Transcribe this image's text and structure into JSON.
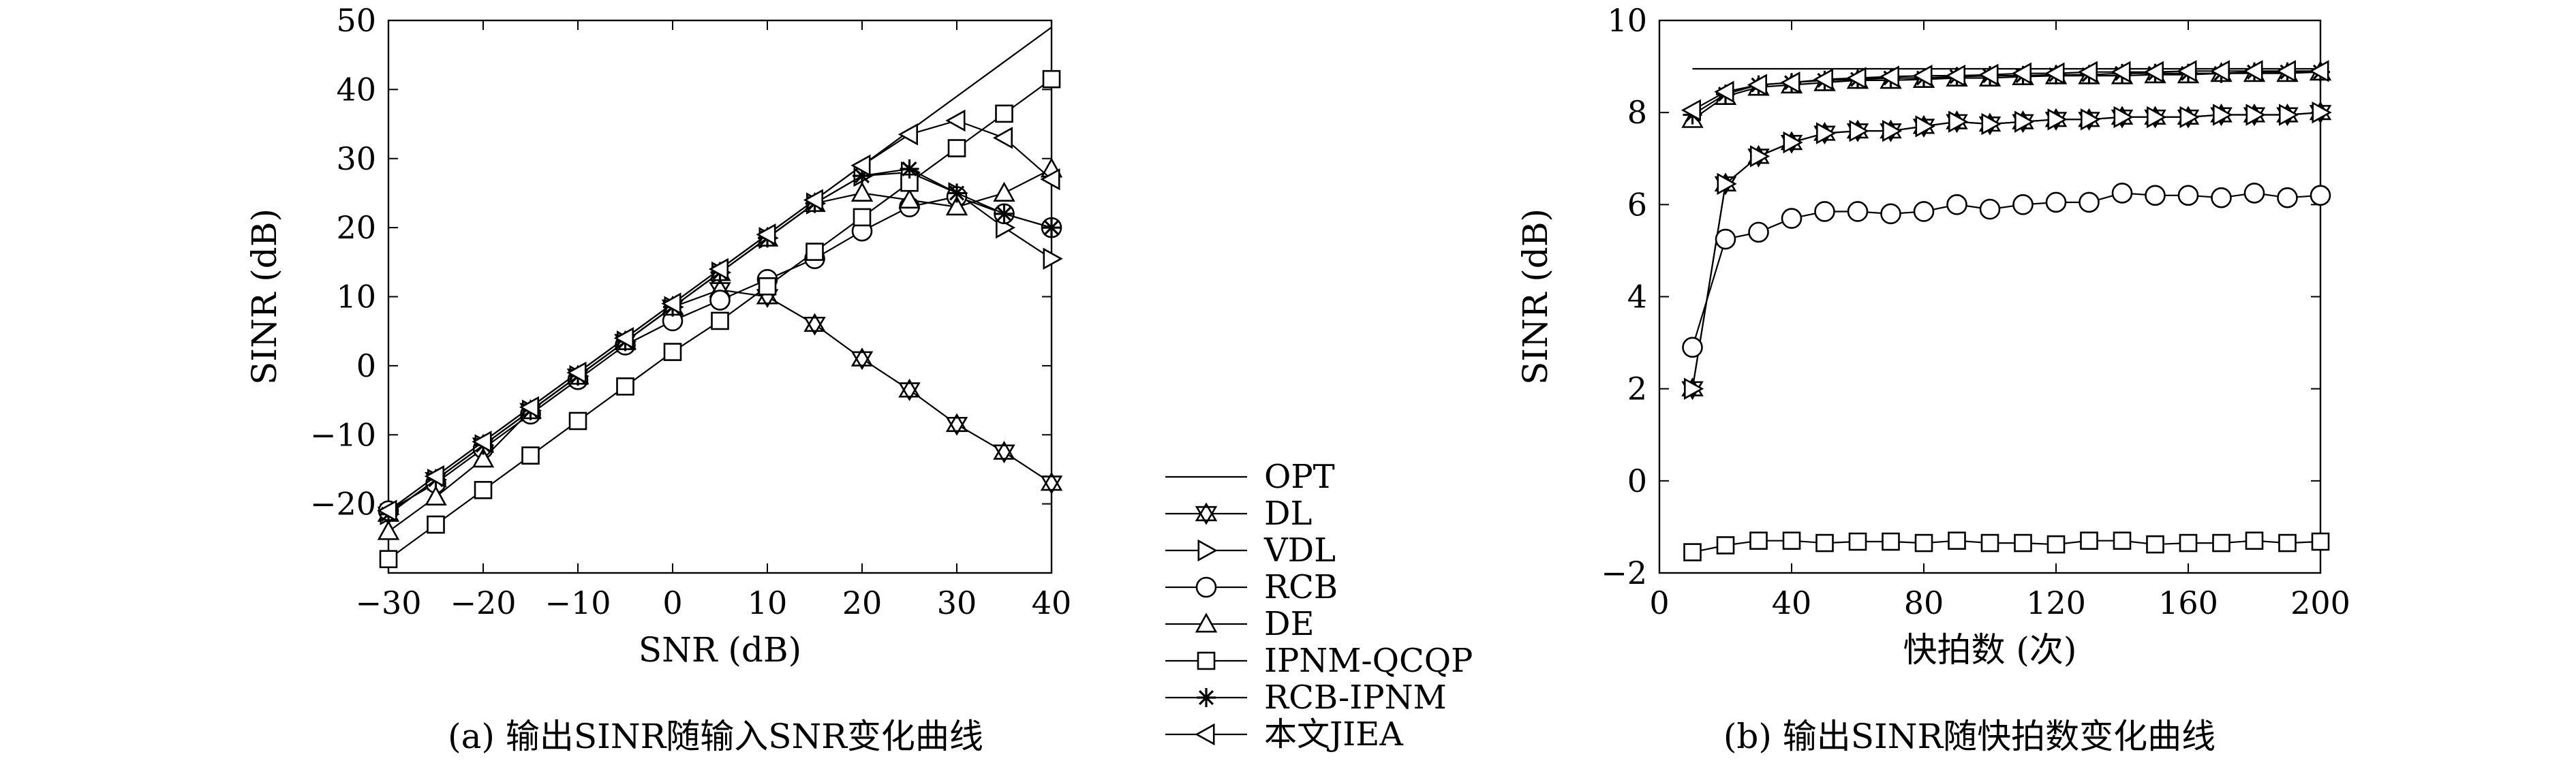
{
  "chart_data": [
    {
      "type": "line",
      "caption": "(a) 输出SINR随输入SNR变化曲线",
      "xlabel": "SNR (dB)",
      "ylabel": "SINR (dB)",
      "xlim": [
        -30,
        40
      ],
      "ylim": [
        -30,
        50
      ],
      "xticks": [
        -30,
        -20,
        -10,
        0,
        10,
        20,
        30,
        40
      ],
      "yticks": [
        -20,
        -10,
        0,
        10,
        20,
        30,
        40,
        50
      ],
      "xtick_labels": [
        "−30",
        "−20",
        "−10",
        "0",
        "10",
        "20",
        "30",
        "40"
      ],
      "ytick_labels": [
        "−20",
        "−10",
        "0",
        "10",
        "20",
        "30",
        "40",
        "50"
      ],
      "grid": false,
      "series": [
        {
          "name": "OPT",
          "marker": "none",
          "x": [
            -30,
            -25,
            -20,
            -15,
            -10,
            -5,
            0,
            5,
            10,
            15,
            20,
            25,
            30,
            35,
            40
          ],
          "y": [
            -21,
            -16,
            -11,
            -6,
            -1,
            4,
            9,
            14,
            19,
            24,
            29,
            34,
            39,
            44,
            49
          ]
        },
        {
          "name": "DL",
          "marker": "star-triangle-down",
          "x": [
            -30,
            -25,
            -20,
            -15,
            -10,
            -5,
            0,
            5,
            10,
            15,
            20,
            25,
            30,
            35,
            40
          ],
          "y": [
            -21.5,
            -16.5,
            -11.5,
            -6.5,
            -1.5,
            3.5,
            8.5,
            11,
            10,
            6,
            1,
            -3.5,
            -8.5,
            -12.5,
            -17
          ]
        },
        {
          "name": "VDL",
          "marker": "triangle-right",
          "x": [
            -30,
            -25,
            -20,
            -15,
            -10,
            -5,
            0,
            5,
            10,
            15,
            20,
            25,
            30,
            35,
            40
          ],
          "y": [
            -21.5,
            -16.5,
            -11.5,
            -6.5,
            -1.5,
            3.5,
            8.5,
            13.5,
            18.5,
            23.5,
            27.5,
            28,
            25,
            20,
            15.5
          ]
        },
        {
          "name": "RCB",
          "marker": "circle",
          "x": [
            -30,
            -25,
            -20,
            -15,
            -10,
            -5,
            0,
            5,
            10,
            15,
            20,
            25,
            30,
            35,
            40
          ],
          "y": [
            -21,
            -17,
            -12,
            -7,
            -2,
            3,
            6.5,
            9.5,
            12.5,
            15.5,
            19.5,
            23,
            24.5,
            22,
            20
          ]
        },
        {
          "name": "DE",
          "marker": "triangle-up",
          "x": [
            -30,
            -25,
            -20,
            -15,
            -10,
            -5,
            0,
            5,
            10,
            15,
            20,
            25,
            30,
            35,
            40
          ],
          "y": [
            -24,
            -19,
            -13.5,
            -6.5,
            -1.5,
            3.5,
            8.5,
            13.5,
            18.5,
            23.5,
            25,
            24,
            23,
            25,
            28.5
          ]
        },
        {
          "name": "IPNM-QCQP",
          "marker": "square",
          "x": [
            -30,
            -25,
            -20,
            -15,
            -10,
            -5,
            0,
            5,
            10,
            15,
            20,
            25,
            30,
            35,
            40
          ],
          "y": [
            -28,
            -23,
            -18,
            -13,
            -8,
            -3,
            2,
            6.5,
            11.5,
            16.5,
            21.5,
            26.5,
            31.5,
            36.5,
            41.5
          ]
        },
        {
          "name": "RCB-IPNM",
          "marker": "asterisk",
          "x": [
            -30,
            -25,
            -20,
            -15,
            -10,
            -5,
            0,
            5,
            10,
            15,
            20,
            25,
            30,
            35,
            40
          ],
          "y": [
            -21.5,
            -16.5,
            -11.5,
            -6.5,
            -1.5,
            3.5,
            8.5,
            13.5,
            18.5,
            23.5,
            27.5,
            28.5,
            25,
            22,
            20
          ]
        },
        {
          "name": "本文JIEA",
          "marker": "triangle-left",
          "x": [
            -30,
            -25,
            -20,
            -15,
            -10,
            -5,
            0,
            5,
            10,
            15,
            20,
            25,
            30,
            35,
            40
          ],
          "y": [
            -21,
            -16,
            -11,
            -6,
            -1,
            4,
            9,
            14,
            19,
            24,
            29,
            33.5,
            35.5,
            33,
            27
          ]
        }
      ]
    },
    {
      "type": "line",
      "caption": "(b) 输出SINR随快拍数变化曲线",
      "xlabel": "快拍数 (次)",
      "ylabel": "SINR (dB)",
      "xlim": [
        0,
        200
      ],
      "ylim": [
        -2,
        10
      ],
      "xticks": [
        0,
        40,
        80,
        120,
        160,
        200
      ],
      "yticks": [
        -2,
        0,
        2,
        4,
        6,
        8,
        10
      ],
      "xtick_labels": [
        "0",
        "40",
        "80",
        "120",
        "160",
        "200"
      ],
      "ytick_labels": [
        "−2",
        "0",
        "2",
        "4",
        "6",
        "8",
        "10"
      ],
      "grid": false,
      "series": [
        {
          "name": "OPT",
          "marker": "none",
          "x": [
            10,
            200
          ],
          "y": [
            8.95,
            8.95
          ]
        },
        {
          "name": "DL",
          "marker": "star-triangle-down",
          "x": [
            10,
            20,
            30,
            40,
            50,
            60,
            70,
            80,
            90,
            100,
            110,
            120,
            130,
            140,
            150,
            160,
            170,
            180,
            190,
            200
          ],
          "y": [
            2,
            6.45,
            7.05,
            7.35,
            7.55,
            7.6,
            7.6,
            7.7,
            7.8,
            7.75,
            7.8,
            7.85,
            7.85,
            7.9,
            7.9,
            7.9,
            7.95,
            7.95,
            7.95,
            8
          ]
        },
        {
          "name": "VDL",
          "marker": "triangle-right",
          "x": [
            10,
            20,
            30,
            40,
            50,
            60,
            70,
            80,
            90,
            100,
            110,
            120,
            130,
            140,
            150,
            160,
            170,
            180,
            190,
            200
          ],
          "y": [
            2,
            6.45,
            7.05,
            7.35,
            7.55,
            7.6,
            7.6,
            7.7,
            7.8,
            7.75,
            7.8,
            7.85,
            7.85,
            7.9,
            7.9,
            7.9,
            7.95,
            7.95,
            7.95,
            8
          ]
        },
        {
          "name": "RCB",
          "marker": "circle",
          "x": [
            10,
            20,
            30,
            40,
            50,
            60,
            70,
            80,
            90,
            100,
            110,
            120,
            130,
            140,
            150,
            160,
            170,
            180,
            190,
            200
          ],
          "y": [
            2.9,
            5.25,
            5.4,
            5.7,
            5.85,
            5.85,
            5.8,
            5.85,
            6.0,
            5.9,
            6.0,
            6.05,
            6.05,
            6.25,
            6.2,
            6.2,
            6.15,
            6.25,
            6.15,
            6.2
          ]
        },
        {
          "name": "DE",
          "marker": "triangle-up",
          "x": [
            10,
            20,
            30,
            40,
            50,
            60,
            70,
            80,
            90,
            100,
            110,
            120,
            130,
            140,
            150,
            160,
            170,
            180,
            190,
            200
          ],
          "y": [
            7.85,
            8.35,
            8.55,
            8.6,
            8.65,
            8.7,
            8.7,
            8.72,
            8.75,
            8.75,
            8.78,
            8.8,
            8.8,
            8.8,
            8.82,
            8.82,
            8.85,
            8.85,
            8.85,
            8.88
          ]
        },
        {
          "name": "IPNM-QCQP",
          "marker": "square",
          "x": [
            10,
            20,
            30,
            40,
            50,
            60,
            70,
            80,
            90,
            100,
            110,
            120,
            130,
            140,
            150,
            160,
            170,
            180,
            190,
            200
          ],
          "y": [
            -1.55,
            -1.4,
            -1.3,
            -1.3,
            -1.35,
            -1.32,
            -1.32,
            -1.35,
            -1.3,
            -1.35,
            -1.35,
            -1.38,
            -1.3,
            -1.3,
            -1.38,
            -1.35,
            -1.35,
            -1.3,
            -1.35,
            -1.32
          ]
        },
        {
          "name": "RCB-IPNM",
          "marker": "asterisk",
          "x": [
            10,
            20,
            30,
            40,
            50,
            60,
            70,
            80,
            90,
            100,
            110,
            120,
            130,
            140,
            150,
            160,
            170,
            180,
            190,
            200
          ],
          "y": [
            7.95,
            8.4,
            8.6,
            8.65,
            8.7,
            8.72,
            8.75,
            8.75,
            8.78,
            8.8,
            8.8,
            8.82,
            8.82,
            8.85,
            8.85,
            8.85,
            8.85,
            8.88,
            8.88,
            8.88
          ]
        },
        {
          "name": "本文JIEA",
          "marker": "triangle-left",
          "x": [
            10,
            20,
            30,
            40,
            50,
            60,
            70,
            80,
            90,
            100,
            110,
            120,
            130,
            140,
            150,
            160,
            170,
            180,
            190,
            200
          ],
          "y": [
            8.05,
            8.45,
            8.6,
            8.65,
            8.72,
            8.75,
            8.78,
            8.8,
            8.8,
            8.82,
            8.85,
            8.85,
            8.88,
            8.88,
            8.88,
            8.9,
            8.9,
            8.9,
            8.9,
            8.9
          ]
        }
      ]
    }
  ],
  "legend": {
    "entries": [
      {
        "label": "OPT",
        "marker": "none"
      },
      {
        "label": "DL",
        "marker": "star-triangle-down"
      },
      {
        "label": "VDL",
        "marker": "triangle-right"
      },
      {
        "label": "RCB",
        "marker": "circle"
      },
      {
        "label": "DE",
        "marker": "triangle-up"
      },
      {
        "label": "IPNM-QCQP",
        "marker": "square"
      },
      {
        "label": "RCB-IPNM",
        "marker": "asterisk"
      },
      {
        "label": "本文JIEA",
        "marker": "triangle-left"
      }
    ]
  }
}
